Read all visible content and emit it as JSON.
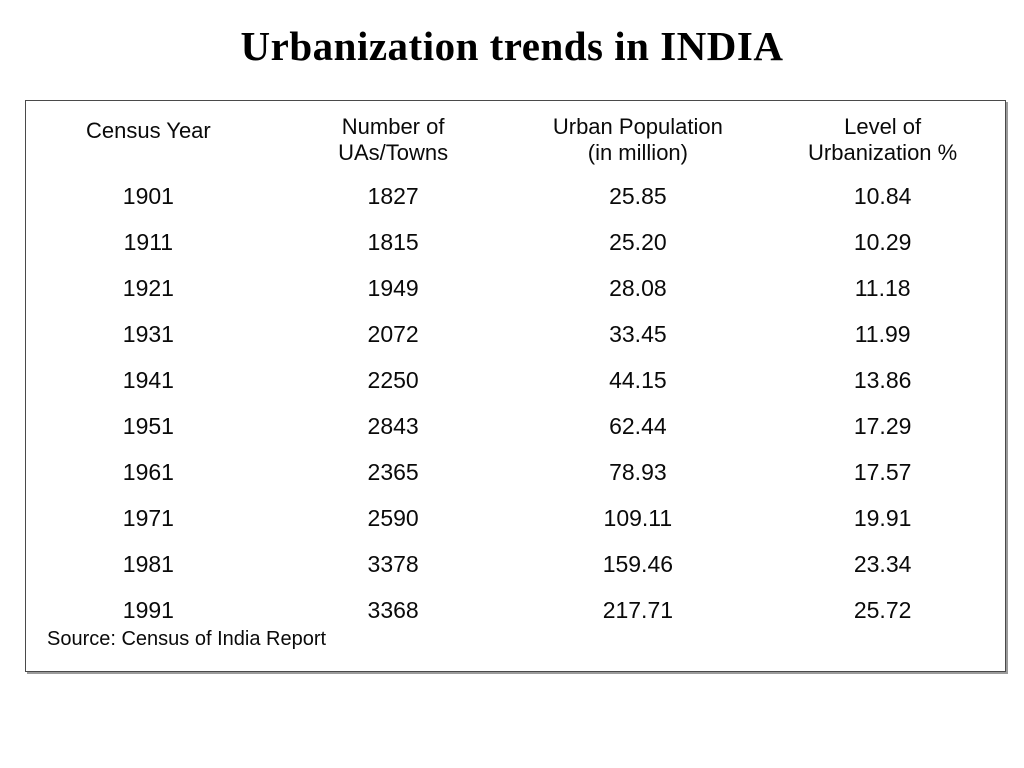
{
  "page": {
    "title": "Urbanization trends in INDIA"
  },
  "table": {
    "headers": [
      "Census Year",
      "Number of\nUAs/Towns",
      "Urban Population\n(in million)",
      "Level of\nUrbanization %"
    ],
    "rows": [
      [
        "1901",
        "1827",
        "25.85",
        "10.84"
      ],
      [
        "1911",
        "1815",
        "25.20",
        "10.29"
      ],
      [
        "1921",
        "1949",
        "28.08",
        "11.18"
      ],
      [
        "1931",
        "2072",
        "33.45",
        "11.99"
      ],
      [
        "1941",
        "2250",
        "44.15",
        "13.86"
      ],
      [
        "1951",
        "2843",
        "62.44",
        "17.29"
      ],
      [
        "1961",
        "2365",
        "78.93",
        "17.57"
      ],
      [
        "1971",
        "2590",
        "109.11",
        "19.91"
      ],
      [
        "1981",
        "3378",
        "159.46",
        "23.34"
      ],
      [
        "1991",
        "3368",
        "217.71",
        "25.72"
      ]
    ],
    "source": "Source: Census of India Report"
  },
  "chart_data": {
    "type": "table",
    "title": "Urbanization trends in INDIA",
    "columns": [
      "Census Year",
      "Number of UAs/Towns",
      "Urban Population (in million)",
      "Level of Urbanization %"
    ],
    "rows": [
      [
        1901,
        1827,
        25.85,
        10.84
      ],
      [
        1911,
        1815,
        25.2,
        10.29
      ],
      [
        1921,
        1949,
        28.08,
        11.18
      ],
      [
        1931,
        2072,
        33.45,
        11.99
      ],
      [
        1941,
        2250,
        44.15,
        13.86
      ],
      [
        1951,
        2843,
        62.44,
        17.29
      ],
      [
        1961,
        2365,
        78.93,
        17.57
      ],
      [
        1971,
        2590,
        109.11,
        19.91
      ],
      [
        1981,
        3378,
        159.46,
        23.34
      ],
      [
        1991,
        3368,
        217.71,
        25.72
      ]
    ],
    "source": "Source: Census of India Report",
    "colors": {
      "text": "#0a0a0a",
      "background": "#ffffff",
      "table_border": "#4a4a4a"
    }
  }
}
